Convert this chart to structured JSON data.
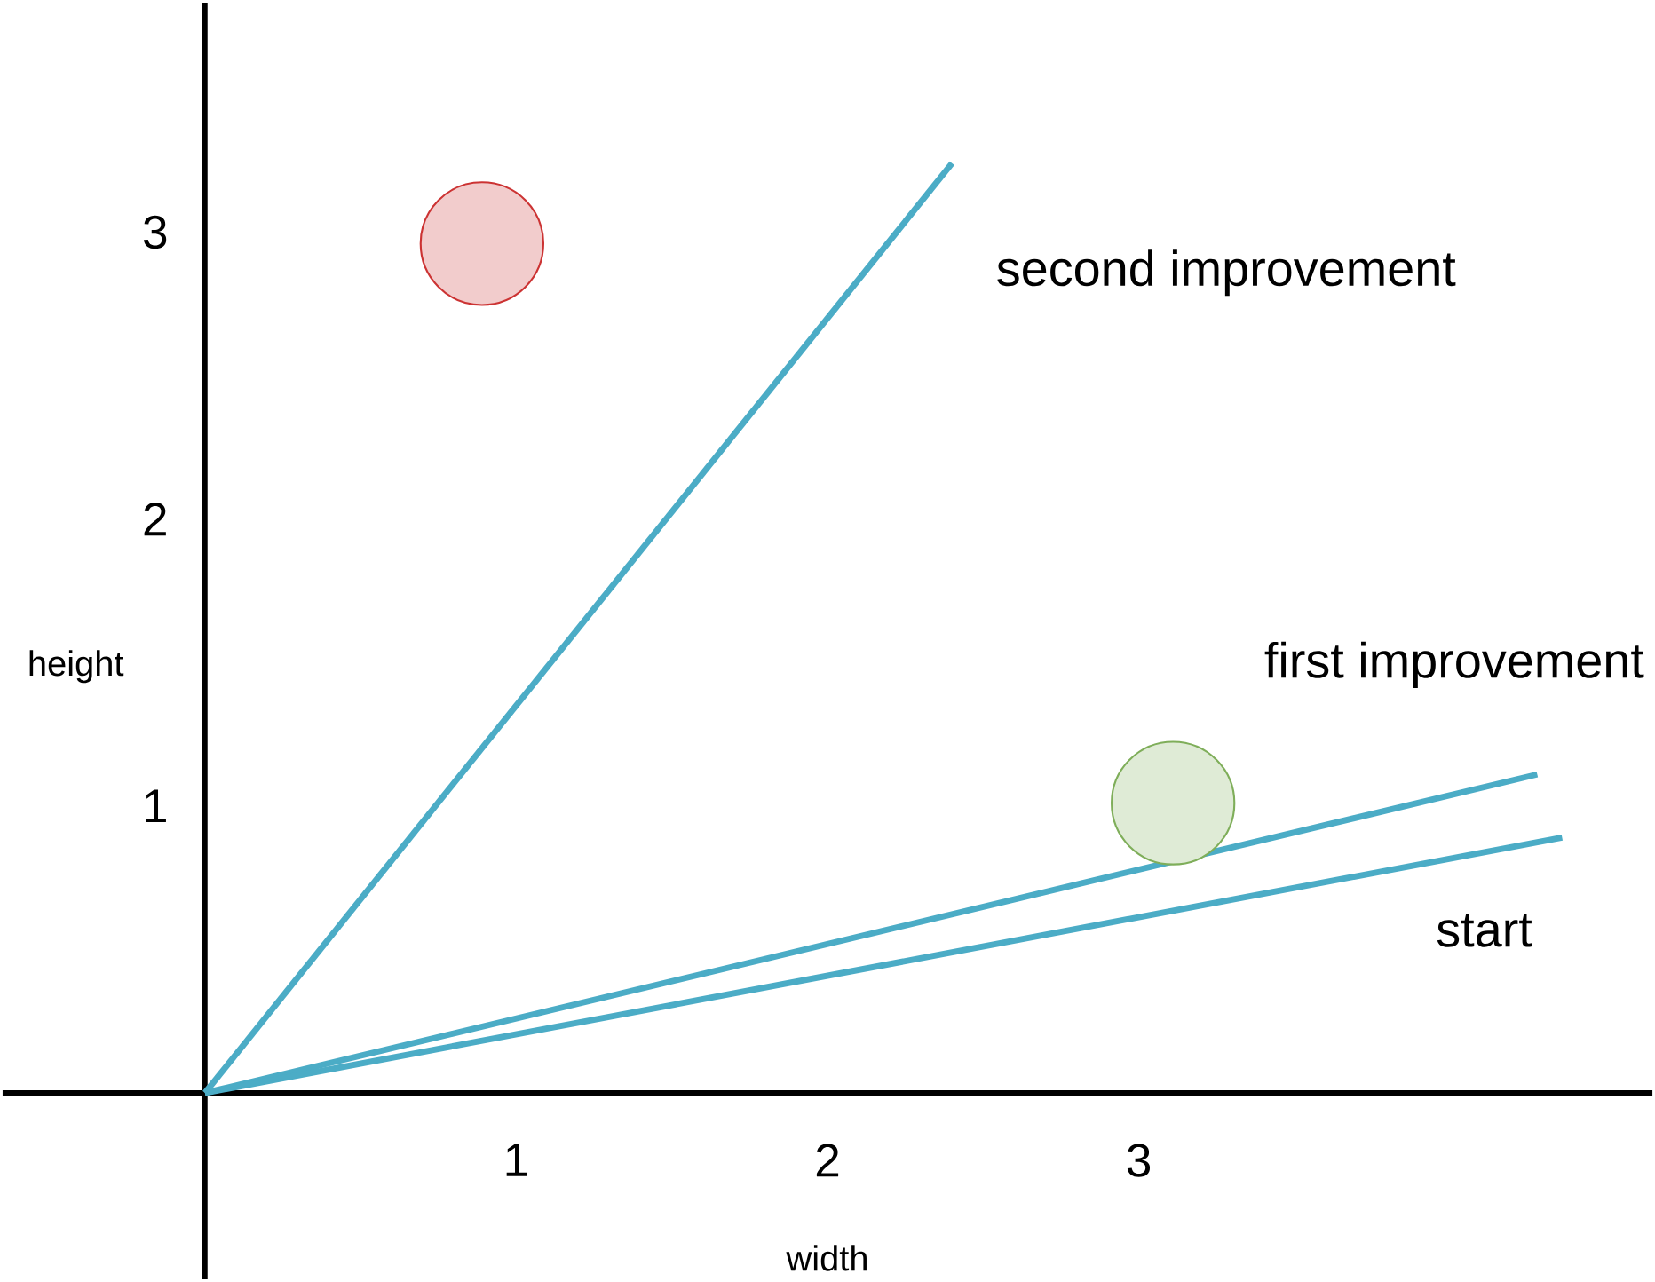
{
  "chart_data": {
    "type": "line",
    "xlabel": "width",
    "ylabel": "height",
    "xlim": [
      -0.65,
      4.65
    ],
    "ylim": [
      -0.65,
      3.8
    ],
    "xticks": [
      1,
      2,
      3
    ],
    "yticks": [
      1,
      2,
      3
    ],
    "grid": false,
    "marker": "none",
    "line_style": "solid",
    "series": [
      {
        "name": "second improvement",
        "color": "#4bacc6",
        "x": [
          0,
          2.4
        ],
        "values": [
          0,
          3.24
        ]
      },
      {
        "name": "first improvement",
        "color": "#4bacc6",
        "x": [
          0,
          4.28
        ],
        "values": [
          0,
          1.11
        ]
      },
      {
        "name": "start",
        "color": "#4bacc6",
        "x": [
          0,
          4.36
        ],
        "values": [
          0,
          0.89
        ]
      },
      {
        "type": "scatter",
        "marker": "circle",
        "color": "#cc3333",
        "x": [
          0.89
        ],
        "values": [
          2.96
        ]
      },
      {
        "type": "scatter",
        "marker": "circle",
        "color": "#7fae5a",
        "x": [
          3.11
        ],
        "values": [
          1.01
        ]
      }
    ]
  }
}
